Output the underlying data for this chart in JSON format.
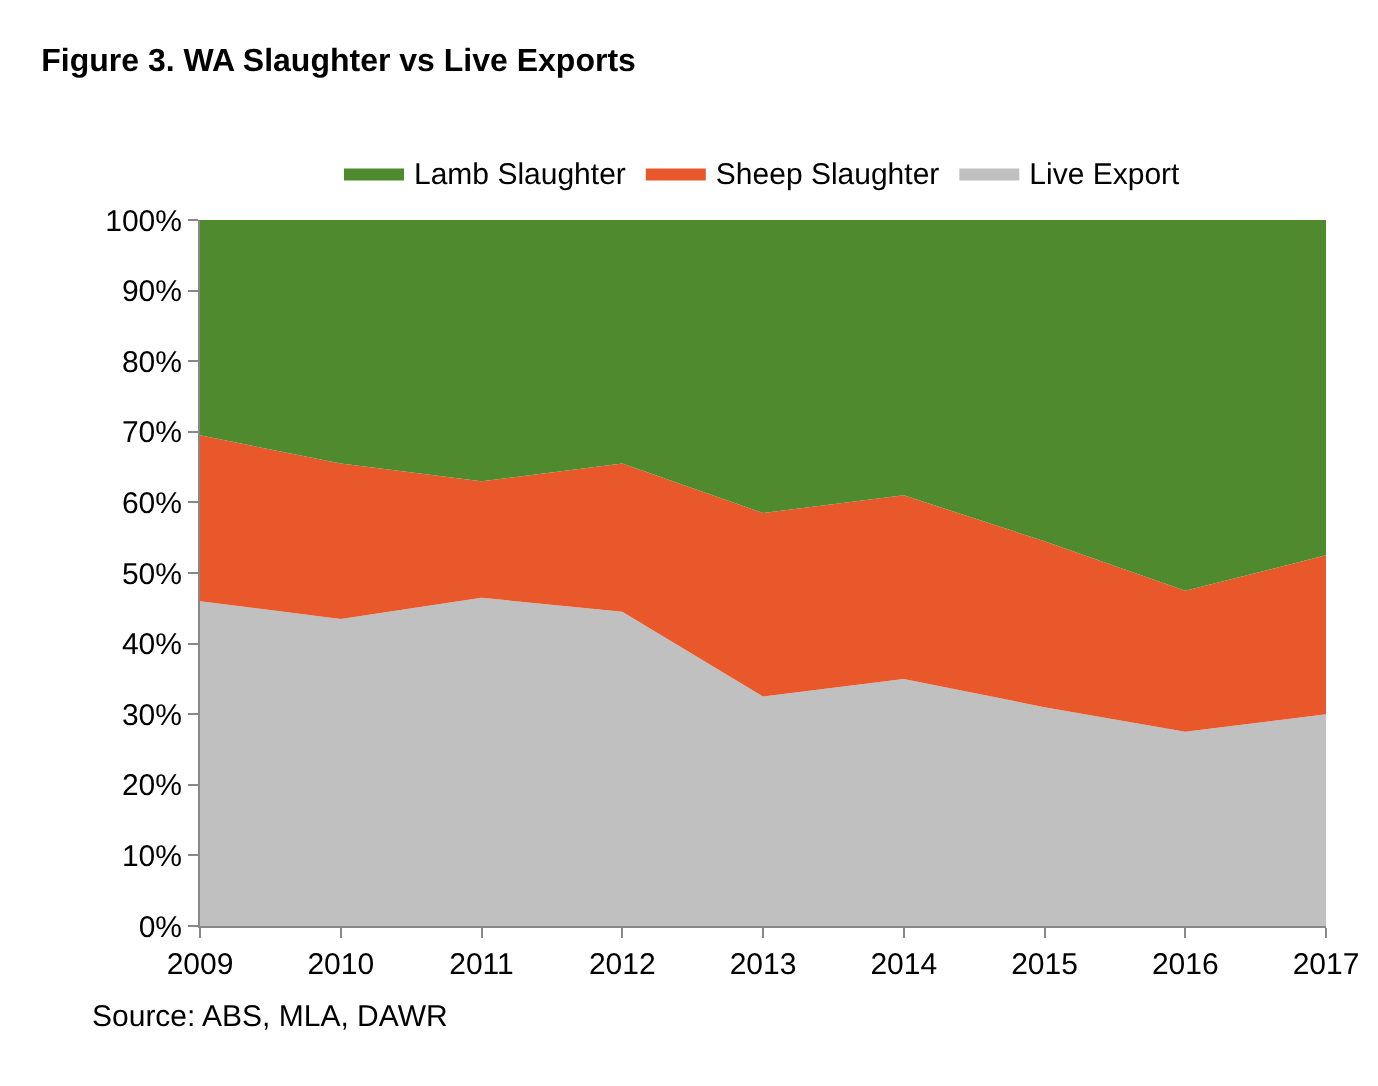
{
  "chart_data": {
    "type": "area",
    "title": "Figure 3. WA Slaughter vs Live Exports",
    "stacked": true,
    "x": [
      2009,
      2010,
      2011,
      2012,
      2013,
      2014,
      2015,
      2016,
      2017
    ],
    "series": [
      {
        "name": "Live Export",
        "color": "#c0c0c0",
        "values": [
          46,
          43.5,
          46.5,
          44.5,
          32.5,
          35,
          31,
          27.5,
          30
        ]
      },
      {
        "name": "Sheep Slaughter",
        "color": "#e8582a",
        "values": [
          23.5,
          22,
          16.5,
          21,
          26,
          26,
          23.5,
          20,
          22.5
        ]
      },
      {
        "name": "Lamb Slaughter",
        "color": "#4f8a2e",
        "values": [
          30.5,
          34.5,
          37,
          34.5,
          41.5,
          39,
          45.5,
          52.5,
          47.5
        ]
      }
    ],
    "xlim": [
      2009,
      2017
    ],
    "xticks": [
      2009,
      2010,
      2011,
      2012,
      2013,
      2014,
      2015,
      2016,
      2017
    ],
    "ylim": [
      0,
      100
    ],
    "yticks": [
      {
        "value": 0,
        "label": "0%"
      },
      {
        "value": 10,
        "label": "10%"
      },
      {
        "value": 20,
        "label": "20%"
      },
      {
        "value": 30,
        "label": "30%"
      },
      {
        "value": 40,
        "label": "40%"
      },
      {
        "value": 50,
        "label": "50%"
      },
      {
        "value": 60,
        "label": "60%"
      },
      {
        "value": 70,
        "label": "70%"
      },
      {
        "value": 80,
        "label": "80%"
      },
      {
        "value": 90,
        "label": "90%"
      },
      {
        "value": 100,
        "label": "100%"
      }
    ],
    "legend": "top",
    "annotations": [
      "Source: ABS, MLA, DAWR"
    ]
  }
}
